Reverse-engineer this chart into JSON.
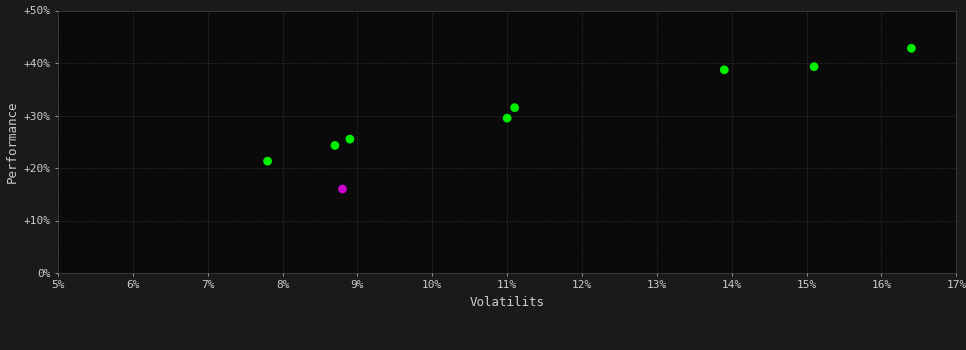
{
  "green_points": [
    [
      0.078,
      0.213
    ],
    [
      0.087,
      0.243
    ],
    [
      0.089,
      0.255
    ],
    [
      0.11,
      0.295
    ],
    [
      0.111,
      0.315
    ],
    [
      0.139,
      0.387
    ],
    [
      0.151,
      0.393
    ],
    [
      0.164,
      0.428
    ]
  ],
  "magenta_points": [
    [
      0.088,
      0.16
    ]
  ],
  "bg_color": "#1a1a1a",
  "plot_bg_color": "#0a0a0a",
  "grid_color": "#333333",
  "green_color": "#00ee00",
  "magenta_color": "#cc00cc",
  "xlabel": "Volatilits",
  "ylabel": "Performance",
  "xlim": [
    0.05,
    0.17
  ],
  "ylim": [
    0.0,
    0.5
  ],
  "xtick_labels": [
    "5%",
    "6%",
    "7%",
    "8%",
    "9%",
    "10%",
    "11%",
    "12%",
    "13%",
    "14%",
    "15%",
    "16%",
    "17%"
  ],
  "ytick_labels": [
    "0%",
    "+10%",
    "+20%",
    "+30%",
    "+40%",
    "+50%"
  ],
  "ytick_values": [
    0.0,
    0.1,
    0.2,
    0.3,
    0.4,
    0.5
  ],
  "xtick_values": [
    0.05,
    0.06,
    0.07,
    0.08,
    0.09,
    0.1,
    0.11,
    0.12,
    0.13,
    0.14,
    0.15,
    0.16,
    0.17
  ],
  "marker_size": 40,
  "text_color": "#cccccc",
  "axis_color": "#444444",
  "label_fontsize": 9,
  "tick_fontsize": 8
}
